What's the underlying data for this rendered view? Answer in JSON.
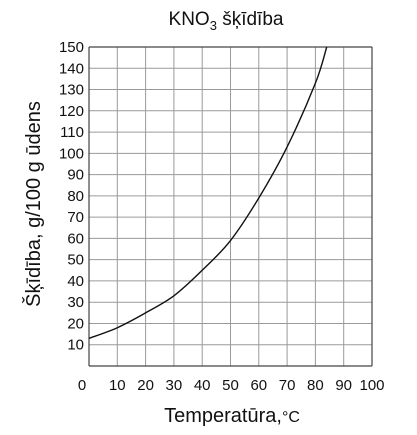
{
  "chart_data": {
    "type": "line",
    "title_main": "KNO",
    "title_sub": "3",
    "title_rest": " šķīdība",
    "xlabel": "Temperatūra,",
    "xunit": "°C",
    "ylabel": "Šķīdība, g/100 g ūdens",
    "origin_label": "0",
    "xlim": [
      0,
      100
    ],
    "ylim": [
      0,
      150
    ],
    "grid": true,
    "x_ticks": [
      "10",
      "20",
      "30",
      "40",
      "50",
      "60",
      "70",
      "80",
      "90",
      "100"
    ],
    "y_ticks": [
      "10",
      "20",
      "30",
      "40",
      "50",
      "60",
      "70",
      "80",
      "90",
      "100",
      "110",
      "120",
      "130",
      "140",
      "150"
    ],
    "series": [
      {
        "x": [
          0,
          10,
          20,
          30,
          40,
          50,
          60,
          70,
          80,
          84
        ],
        "y": [
          13,
          18,
          25,
          33,
          45,
          59,
          79,
          103,
          133,
          150
        ]
      }
    ],
    "line_color": "#111111",
    "grid_color": "#9a9a9a"
  }
}
